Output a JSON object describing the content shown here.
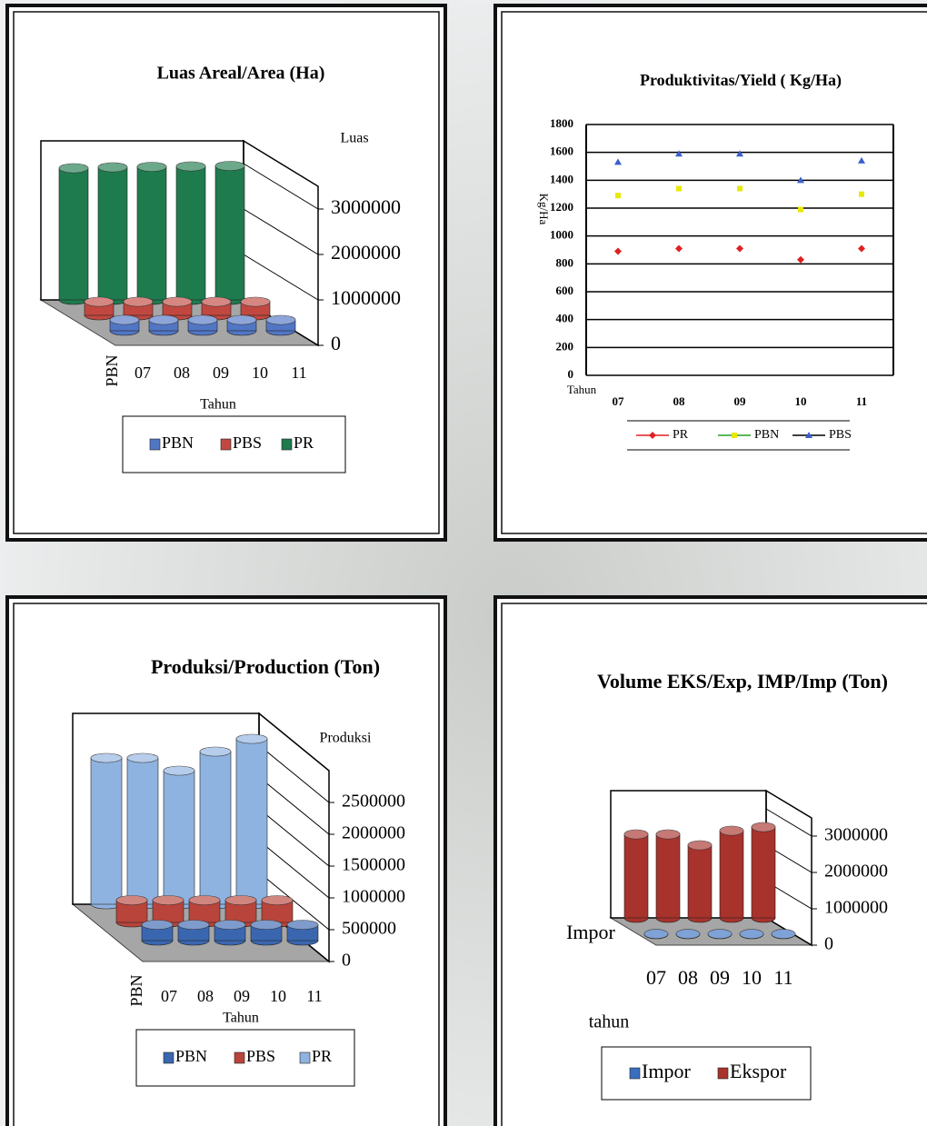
{
  "chart_data": [
    {
      "type": "bar3d",
      "title": "Luas Areal/Area (Ha)",
      "y_label": "Luas",
      "x_label": "Tahun",
      "categories": [
        "07",
        "08",
        "09",
        "10",
        "11"
      ],
      "series": [
        {
          "name": "PBN",
          "color": "#5176c4",
          "values": [
            240000,
            240000,
            240000,
            240000,
            240000
          ]
        },
        {
          "name": "PBS",
          "color": "#c04840",
          "values": [
            300000,
            300000,
            300000,
            300000,
            300000
          ]
        },
        {
          "name": "PR",
          "color": "#1e7b4e",
          "values": [
            2900000,
            2920000,
            2930000,
            2940000,
            2950000
          ]
        }
      ],
      "ylim": [
        0,
        3500000
      ],
      "yticks": [
        0,
        1000000,
        2000000,
        3000000
      ],
      "legend": "bottom"
    },
    {
      "type": "line",
      "title": "Produktivitas/Yield ( Kg/Ha)",
      "y_label": "Kg/Ha",
      "x_label": "Tahun",
      "categories": [
        "07",
        "08",
        "09",
        "10",
        "11"
      ],
      "series": [
        {
          "name": "PR",
          "color": "#e02020",
          "marker_color": "#e02020",
          "values": [
            890,
            910,
            910,
            830,
            910
          ]
        },
        {
          "name": "PBN",
          "color": "#22a022",
          "marker_color": "#e8e800",
          "values": [
            1290,
            1340,
            1340,
            1190,
            1300
          ]
        },
        {
          "name": "PBS",
          "color": "#000000",
          "marker_color": "#3a5fcd",
          "values": [
            1530,
            1590,
            1590,
            1400,
            1540
          ]
        }
      ],
      "ylim": [
        0,
        1800
      ],
      "yticks": [
        0,
        200,
        400,
        600,
        800,
        1000,
        1200,
        1400,
        1600,
        1800
      ],
      "grid": true,
      "legend": "bottom"
    },
    {
      "type": "bar3d",
      "title": "Produksi/Production (Ton)",
      "y_label": "Produksi",
      "x_label": "Tahun",
      "categories": [
        "07",
        "08",
        "09",
        "10",
        "11"
      ],
      "series": [
        {
          "name": "PBN",
          "color": "#3a66b0",
          "values": [
            250000,
            250000,
            250000,
            250000,
            250000
          ]
        },
        {
          "name": "PBS",
          "color": "#b8443b",
          "values": [
            350000,
            350000,
            350000,
            350000,
            350000
          ]
        },
        {
          "name": "PR",
          "color": "#8fb3e0",
          "values": [
            2300000,
            2300000,
            2100000,
            2400000,
            2600000
          ]
        }
      ],
      "ylim": [
        0,
        3000000
      ],
      "yticks": [
        0,
        500000,
        1000000,
        1500000,
        2000000,
        2500000
      ],
      "legend": "bottom"
    },
    {
      "type": "bar3d",
      "title": "Volume EKS/Exp, IMP/Imp (Ton)",
      "x_label": "tahun",
      "categories": [
        "07",
        "08",
        "09",
        "10",
        "11"
      ],
      "series": [
        {
          "name": "Impor",
          "color": "#3a6fc0",
          "values": [
            10000,
            10000,
            10000,
            10000,
            10000
          ]
        },
        {
          "name": "Ekspor",
          "color": "#a8322c",
          "values": [
            2300000,
            2300000,
            2000000,
            2400000,
            2500000
          ]
        }
      ],
      "ylim": [
        0,
        3500000
      ],
      "yticks": [
        0,
        1000000,
        2000000,
        3000000
      ],
      "legend": "bottom"
    }
  ]
}
